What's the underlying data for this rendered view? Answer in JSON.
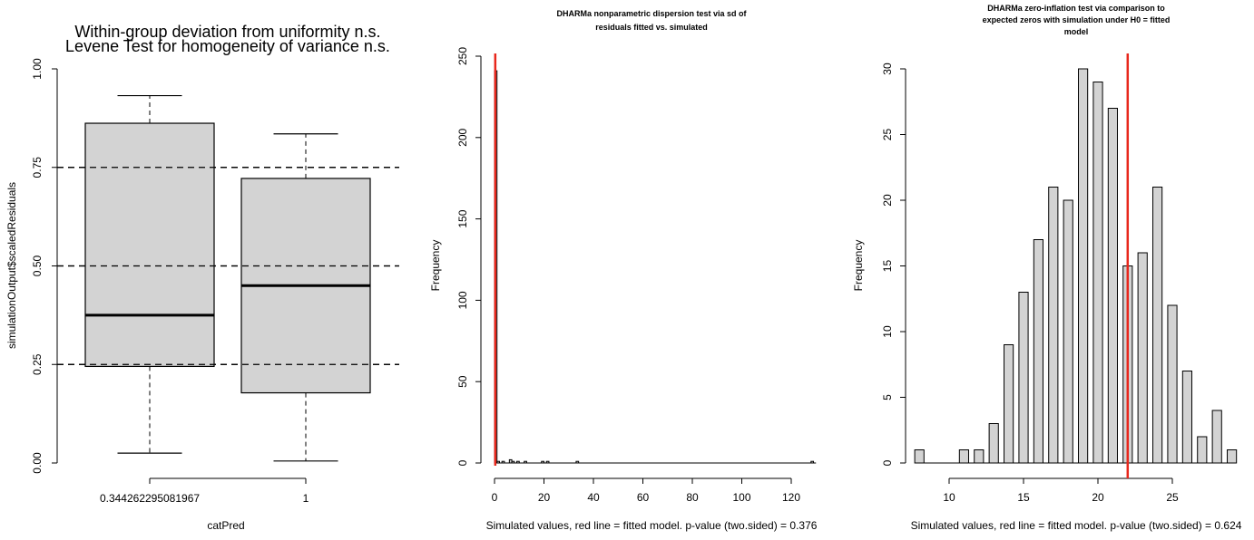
{
  "chart_data": [
    {
      "type": "boxplot",
      "title": "Within-group deviation from uniformity n.s.",
      "subtitle": "Levene Test for homogeneity of variance n.s.",
      "xlabel": "catPred",
      "ylabel": "simulationOutput$scaledResiduals",
      "ylim": [
        0,
        1
      ],
      "yticks": [
        "0.00",
        "0.25",
        "0.50",
        "0.75",
        "1.00"
      ],
      "reference_lines": [
        0.25,
        0.5,
        0.75
      ],
      "categories": [
        "0.344262295081967",
        "1"
      ],
      "boxes": [
        {
          "whisker_low": 0.025,
          "q1": 0.245,
          "median": 0.375,
          "q3": 0.862,
          "whisker_high": 0.932
        },
        {
          "whisker_low": 0.005,
          "q1": 0.178,
          "median": 0.45,
          "q3": 0.722,
          "whisker_high": 0.835
        }
      ],
      "box_color": "#d3d3d3"
    },
    {
      "type": "histogram",
      "title": "DHARMa nonparametric dispersion test via sd of residuals fitted vs. simulated",
      "xlabel": "Simulated values, red line = fitted model. p-value (two.sided) = 0.376",
      "ylabel": "Frequency",
      "xlim": [
        0,
        130
      ],
      "ylim": [
        0,
        250
      ],
      "xticks": [
        0,
        20,
        40,
        60,
        80,
        100,
        120
      ],
      "yticks": [
        0,
        50,
        100,
        150,
        200,
        250
      ],
      "bin_width": 1,
      "bins": [
        {
          "x0": 0,
          "x1": 1,
          "count": 241
        },
        {
          "x0": 1,
          "x1": 2,
          "count": 1
        },
        {
          "x0": 3,
          "x1": 4,
          "count": 1
        },
        {
          "x0": 6,
          "x1": 7,
          "count": 2
        },
        {
          "x0": 7,
          "x1": 8,
          "count": 1
        },
        {
          "x0": 9,
          "x1": 10,
          "count": 1
        },
        {
          "x0": 12,
          "x1": 13,
          "count": 1
        },
        {
          "x0": 19,
          "x1": 20,
          "count": 1
        },
        {
          "x0": 21,
          "x1": 22,
          "count": 1
        },
        {
          "x0": 33,
          "x1": 34,
          "count": 1
        },
        {
          "x0": 128,
          "x1": 129,
          "count": 1
        }
      ],
      "red_line_x": 0.3,
      "bar_color": "#d3d3d3",
      "line_color": "#e8271c"
    },
    {
      "type": "histogram",
      "title": "DHARMa zero-inflation test via comparison to expected zeros with simulation under H0 = fitted model",
      "xlabel": "Simulated values, red line = fitted model. p-value (two.sided) = 0.624",
      "ylabel": "Frequency",
      "xlim": [
        7.3,
        29
      ],
      "ylim": [
        0,
        30
      ],
      "xticks": [
        10,
        15,
        20,
        25
      ],
      "yticks": [
        0,
        5,
        10,
        15,
        20,
        25,
        30
      ],
      "bins": [
        {
          "x": 8,
          "count": 1
        },
        {
          "x": 9,
          "count": 0
        },
        {
          "x": 10,
          "count": 0
        },
        {
          "x": 11,
          "count": 1
        },
        {
          "x": 12,
          "count": 1
        },
        {
          "x": 13,
          "count": 3
        },
        {
          "x": 14,
          "count": 9
        },
        {
          "x": 15,
          "count": 13
        },
        {
          "x": 16,
          "count": 17
        },
        {
          "x": 17,
          "count": 21
        },
        {
          "x": 18,
          "count": 20
        },
        {
          "x": 19,
          "count": 30
        },
        {
          "x": 20,
          "count": 29
        },
        {
          "x": 21,
          "count": 27
        },
        {
          "x": 22,
          "count": 15
        },
        {
          "x": 23,
          "count": 16
        },
        {
          "x": 24,
          "count": 21
        },
        {
          "x": 25,
          "count": 12
        },
        {
          "x": 26,
          "count": 7
        },
        {
          "x": 27,
          "count": 2
        },
        {
          "x": 28,
          "count": 4
        },
        {
          "x": 29,
          "count": 1
        }
      ],
      "red_line_x": 22,
      "bar_color": "#d3d3d3",
      "line_color": "#e8271c"
    }
  ]
}
